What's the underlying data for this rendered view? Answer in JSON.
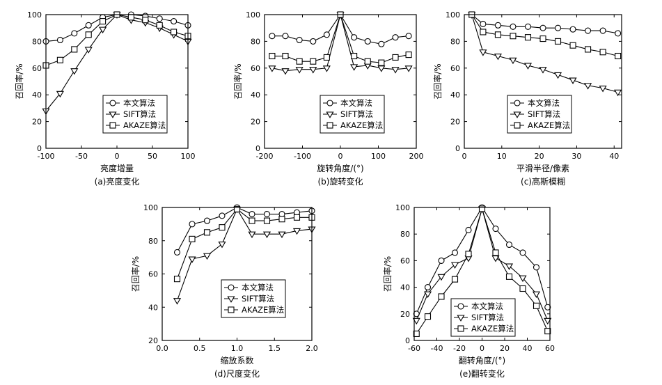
{
  "chart_data": [
    {
      "type": "line",
      "caption": "(a)亮度变化",
      "xlabel": "亮度增量",
      "ylabel": "召回率/%",
      "xlim": [
        -100,
        100
      ],
      "ylim": [
        0,
        100
      ],
      "xticks": [
        -100,
        -50,
        0,
        50,
        100
      ],
      "yticks": [
        0,
        20,
        40,
        60,
        80,
        100
      ],
      "legend": "bottom-center",
      "series": [
        {
          "name": "本文算法",
          "marker": "circle",
          "x": [
            -100,
            -80,
            -60,
            -40,
            -20,
            0,
            20,
            40,
            60,
            80,
            100
          ],
          "y": [
            80,
            81,
            86,
            92,
            98,
            100,
            100,
            99,
            97,
            95,
            92
          ]
        },
        {
          "name": "SIFT算法",
          "marker": "triangle-down",
          "x": [
            -100,
            -80,
            -60,
            -40,
            -20,
            0,
            20,
            40,
            60,
            80,
            100
          ],
          "y": [
            28,
            41,
            58,
            74,
            89,
            100,
            96,
            94,
            90,
            85,
            80
          ]
        },
        {
          "name": "AKAZE算法",
          "marker": "square",
          "x": [
            -100,
            -80,
            -60,
            -40,
            -20,
            0,
            20,
            40,
            60,
            80,
            100
          ],
          "y": [
            62,
            66,
            74,
            85,
            95,
            100,
            98,
            96,
            92,
            87,
            84
          ]
        }
      ]
    },
    {
      "type": "line",
      "caption": "(b)旋转变化",
      "xlabel": "旋转角度/(°)",
      "ylabel": "召回率/%",
      "xlim": [
        -200,
        200
      ],
      "ylim": [
        0,
        100
      ],
      "xticks": [
        -200,
        -100,
        0,
        100,
        200
      ],
      "yticks": [
        0,
        20,
        40,
        60,
        80,
        100
      ],
      "legend": "bottom-center",
      "series": [
        {
          "name": "本文算法",
          "marker": "circle",
          "x": [
            -180,
            -145,
            -108,
            -72,
            -36,
            0,
            36,
            72,
            108,
            145,
            180
          ],
          "y": [
            84,
            84,
            81,
            80,
            85,
            100,
            83,
            80,
            78,
            83,
            84
          ]
        },
        {
          "name": "SIFT算法",
          "marker": "triangle-down",
          "x": [
            -180,
            -145,
            -108,
            -72,
            -36,
            0,
            36,
            72,
            108,
            145,
            180
          ],
          "y": [
            60,
            58,
            59,
            59,
            60,
            100,
            61,
            62,
            60,
            59,
            60
          ]
        },
        {
          "name": "AKAZE算法",
          "marker": "square",
          "x": [
            -180,
            -145,
            -108,
            -72,
            -36,
            0,
            36,
            72,
            108,
            145,
            180
          ],
          "y": [
            69,
            69,
            65,
            65,
            68,
            100,
            69,
            65,
            64,
            68,
            70
          ]
        }
      ]
    },
    {
      "type": "line",
      "caption": "(c)高斯模糊",
      "xlabel": "平滑半径/像素",
      "ylabel": "召回率/%",
      "xlim": [
        0,
        42
      ],
      "ylim": [
        0,
        100
      ],
      "xticks": [
        0,
        10,
        20,
        30,
        40
      ],
      "yticks": [
        0,
        20,
        40,
        60,
        80,
        100
      ],
      "legend": "bottom-center",
      "series": [
        {
          "name": "本文算法",
          "marker": "circle",
          "x": [
            2,
            5,
            9,
            13,
            17,
            21,
            25,
            29,
            33,
            37,
            41
          ],
          "y": [
            100,
            93,
            92,
            91,
            91,
            90,
            90,
            89,
            88,
            88,
            86
          ]
        },
        {
          "name": "SIFT算法",
          "marker": "triangle-down",
          "x": [
            2,
            5,
            9,
            13,
            17,
            21,
            25,
            29,
            33,
            37,
            41
          ],
          "y": [
            100,
            72,
            69,
            66,
            62,
            59,
            55,
            51,
            47,
            45,
            42
          ]
        },
        {
          "name": "AKAZE算法",
          "marker": "square",
          "x": [
            2,
            5,
            9,
            13,
            17,
            21,
            25,
            29,
            33,
            37,
            41
          ],
          "y": [
            100,
            87,
            85,
            84,
            83,
            82,
            80,
            77,
            74,
            72,
            69
          ]
        }
      ]
    },
    {
      "type": "line",
      "caption": "(d)尺度变化",
      "xlabel": "缩放系数",
      "ylabel": "召回率/%",
      "xlim": [
        0.0,
        2.0
      ],
      "ylim": [
        20,
        100
      ],
      "xticks": [
        "0.0",
        "0.5",
        "1.0",
        "1.5",
        "2.0"
      ],
      "yticks": [
        20,
        40,
        60,
        80,
        100
      ],
      "legend": "bottom-center",
      "series": [
        {
          "name": "本文算法",
          "marker": "circle",
          "x": [
            0.2,
            0.4,
            0.6,
            0.8,
            1.0,
            1.2,
            1.4,
            1.6,
            1.8,
            2.0
          ],
          "y": [
            73,
            90,
            92,
            95,
            100,
            96,
            96,
            96,
            97,
            98
          ]
        },
        {
          "name": "SIFT算法",
          "marker": "triangle-down",
          "x": [
            0.2,
            0.4,
            0.6,
            0.8,
            1.0,
            1.2,
            1.4,
            1.6,
            1.8,
            2.0
          ],
          "y": [
            44,
            69,
            71,
            78,
            99,
            84,
            84,
            84,
            86,
            87
          ]
        },
        {
          "name": "AKAZE算法",
          "marker": "square",
          "x": [
            0.2,
            0.4,
            0.6,
            0.8,
            1.0,
            1.2,
            1.4,
            1.6,
            1.8,
            2.0
          ],
          "y": [
            57,
            81,
            85,
            88,
            99,
            92,
            92,
            93,
            94,
            94
          ]
        }
      ]
    },
    {
      "type": "line",
      "caption": "(e)翻转变化",
      "xlabel": "翻转角度/(°)",
      "ylabel": "召回率/%",
      "xlim": [
        -60,
        60
      ],
      "ylim": [
        0,
        100
      ],
      "xticks": [
        -60,
        -40,
        -20,
        0,
        20,
        40,
        60
      ],
      "yticks": [
        0,
        20,
        40,
        60,
        80,
        100
      ],
      "legend": "bottom-center",
      "series": [
        {
          "name": "本文算法",
          "marker": "circle",
          "x": [
            -58,
            -48,
            -36,
            -24,
            -12,
            0,
            12,
            24,
            36,
            48,
            58
          ],
          "y": [
            20,
            40,
            60,
            66,
            83,
            100,
            84,
            72,
            66,
            55,
            25
          ]
        },
        {
          "name": "SIFT算法",
          "marker": "triangle-down",
          "x": [
            -58,
            -48,
            -36,
            -24,
            -12,
            0,
            12,
            24,
            36,
            48,
            58
          ],
          "y": [
            15,
            35,
            48,
            57,
            62,
            99,
            62,
            56,
            47,
            35,
            15
          ]
        },
        {
          "name": "AKAZE算法",
          "marker": "square",
          "x": [
            -58,
            -48,
            -36,
            -24,
            -12,
            0,
            12,
            24,
            36,
            48,
            58
          ],
          "y": [
            5,
            18,
            33,
            46,
            65,
            99,
            66,
            48,
            39,
            26,
            7
          ]
        }
      ]
    }
  ]
}
